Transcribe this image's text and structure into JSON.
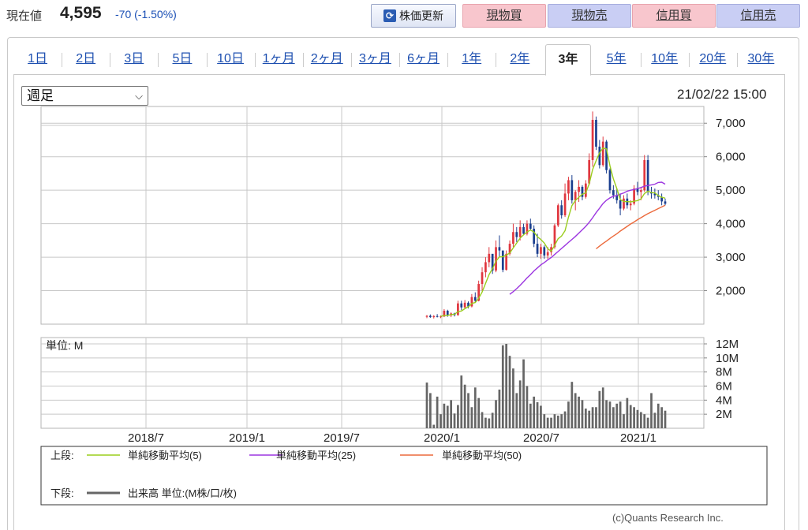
{
  "header": {
    "price_label": "現在値",
    "price": "4,595",
    "change": "-70 (-1.50%)",
    "refresh_label": "株価更新",
    "trade_buttons": [
      "現物買",
      "現物売",
      "信用買",
      "信用売"
    ]
  },
  "tabs": [
    "1日",
    "2日",
    "3日",
    "5日",
    "10日",
    "1ヶ月",
    "2ヶ月",
    "3ヶ月",
    "6ヶ月",
    "1年",
    "2年",
    "3年",
    "5年",
    "10年",
    "20年",
    "30年"
  ],
  "active_tab": "3年",
  "interval": {
    "selected": "週足"
  },
  "timestamp": "21/02/22 15:00",
  "copyright": "(c)Quants Research Inc.",
  "colors": {
    "up": "#e0373f",
    "down": "#1b3f8f",
    "ma5": "#9acd1c",
    "ma25": "#9c36e0",
    "ma50": "#ec6a3c",
    "volume": "#666666",
    "grid": "#c8c8c8"
  },
  "chart_data": [
    {
      "type": "candlestick",
      "period": "weekly",
      "x_ticks": [
        "2018/7",
        "2019/1",
        "2019/7",
        "2020/1",
        "2020/7",
        "2021/1"
      ],
      "y_ticks": [
        "2,000",
        "3,000",
        "4,000",
        "5,000",
        "6,000",
        "7,000"
      ],
      "ylim": [
        1000,
        7500
      ],
      "legend": [
        {
          "section": "上段:",
          "label": "単純移動平均(5)",
          "color": "#9acd1c"
        },
        {
          "section": "",
          "label": "単純移動平均(25)",
          "color": "#9c36e0"
        },
        {
          "section": "",
          "label": "単純移動平均(50)",
          "color": "#ec6a3c"
        }
      ],
      "candles": [
        [
          1220,
          1270,
          1180,
          1250
        ],
        [
          1250,
          1290,
          1190,
          1210
        ],
        [
          1210,
          1270,
          1170,
          1240
        ],
        [
          1240,
          1300,
          1200,
          1220
        ],
        [
          1220,
          1260,
          1180,
          1230
        ],
        [
          1230,
          1450,
          1210,
          1400
        ],
        [
          1400,
          1430,
          1220,
          1260
        ],
        [
          1260,
          1350,
          1210,
          1320
        ],
        [
          1320,
          1340,
          1230,
          1270
        ],
        [
          1270,
          1700,
          1250,
          1620
        ],
        [
          1620,
          1700,
          1420,
          1500
        ],
        [
          1500,
          1720,
          1460,
          1640
        ],
        [
          1640,
          1680,
          1470,
          1530
        ],
        [
          1530,
          1900,
          1500,
          1810
        ],
        [
          1810,
          1950,
          1640,
          1700
        ],
        [
          1700,
          2300,
          1680,
          2200
        ],
        [
          2200,
          2700,
          2000,
          2550
        ],
        [
          2550,
          3000,
          2400,
          2850
        ],
        [
          2850,
          3300,
          2700,
          3100
        ],
        [
          3100,
          3050,
          2500,
          2600
        ],
        [
          2600,
          3500,
          2550,
          3300
        ],
        [
          3300,
          3650,
          3000,
          3200
        ],
        [
          3200,
          3150,
          2550,
          2620
        ],
        [
          2620,
          3200,
          2600,
          3100
        ],
        [
          3100,
          3500,
          3050,
          3400
        ],
        [
          3400,
          4000,
          3300,
          3750
        ],
        [
          3750,
          3900,
          3450,
          3600
        ],
        [
          3600,
          4100,
          3500,
          3900
        ],
        [
          3900,
          4000,
          3650,
          3700
        ],
        [
          3700,
          4100,
          3650,
          4000
        ],
        [
          4000,
          4150,
          3800,
          3850
        ],
        [
          3850,
          3950,
          3300,
          3400
        ],
        [
          3400,
          3700,
          3000,
          3100
        ],
        [
          3100,
          3400,
          2950,
          3300
        ],
        [
          3300,
          3350,
          2950,
          3050
        ],
        [
          3050,
          3300,
          2950,
          3150
        ],
        [
          3150,
          3400,
          3050,
          3300
        ],
        [
          3300,
          4000,
          3250,
          3950
        ],
        [
          3950,
          4600,
          3900,
          4550
        ],
        [
          4550,
          4700,
          4150,
          4250
        ],
        [
          4250,
          5200,
          4200,
          4900
        ],
        [
          4900,
          5400,
          4700,
          5300
        ],
        [
          5300,
          5450,
          4600,
          4700
        ],
        [
          4700,
          5000,
          4400,
          4950
        ],
        [
          4950,
          5300,
          4650,
          5100
        ],
        [
          5100,
          5150,
          4700,
          4800
        ],
        [
          4800,
          5300,
          4750,
          5200
        ],
        [
          5200,
          6100,
          5150,
          5900
        ],
        [
          5900,
          7350,
          5700,
          7100
        ],
        [
          7100,
          7200,
          6200,
          6300
        ],
        [
          6300,
          6500,
          5650,
          5750
        ],
        [
          5750,
          6600,
          5700,
          6450
        ],
        [
          6450,
          6500,
          5500,
          5600
        ],
        [
          5600,
          5650,
          4900,
          5000
        ],
        [
          5000,
          5150,
          4750,
          4850
        ],
        [
          4850,
          5050,
          4600,
          4700
        ],
        [
          4700,
          4900,
          4250,
          4450
        ],
        [
          4450,
          4850,
          4400,
          4750
        ],
        [
          4750,
          4900,
          4450,
          4550
        ],
        [
          4550,
          4700,
          4400,
          4600
        ],
        [
          4600,
          5150,
          4550,
          5050
        ],
        [
          5050,
          5250,
          4850,
          4950
        ],
        [
          4950,
          5100,
          4700,
          5000
        ],
        [
          5000,
          6050,
          4950,
          5900
        ],
        [
          5900,
          6050,
          4850,
          4950
        ],
        [
          4950,
          5100,
          4750,
          4900
        ],
        [
          4900,
          5050,
          4750,
          4850
        ],
        [
          4850,
          5000,
          4700,
          4800
        ],
        [
          4800,
          4900,
          4550,
          4665
        ],
        [
          4665,
          4750,
          4550,
          4595
        ]
      ],
      "ma5": [
        null,
        null,
        null,
        null,
        1230,
        1260,
        1262,
        1286,
        1294,
        1374,
        1394,
        1462,
        1517,
        1620,
        1645,
        1777,
        1958,
        2220,
        2480,
        2660,
        2880,
        3010,
        3014,
        3064,
        3124,
        3274,
        3424,
        3570,
        3670,
        3750,
        3810,
        3750,
        3610,
        3530,
        3420,
        3252,
        3180,
        3350,
        3550,
        3630,
        3790,
        4190,
        4540,
        4690,
        4790,
        4880,
        4920,
        5190,
        5620,
        5882,
        6112,
        6262,
        6232,
        5730,
        5340,
        5050,
        4720,
        4660,
        4660,
        4650,
        4670,
        4690,
        4740,
        4900,
        4970,
        4930,
        4920,
        4840,
        4790,
        4760
      ],
      "ma25": [
        null,
        null,
        null,
        null,
        null,
        null,
        null,
        null,
        null,
        null,
        null,
        null,
        null,
        null,
        null,
        null,
        null,
        null,
        null,
        null,
        null,
        null,
        null,
        null,
        1890,
        1970,
        2060,
        2160,
        2270,
        2380,
        2480,
        2590,
        2680,
        2770,
        2840,
        2920,
        2990,
        3080,
        3170,
        3260,
        3350,
        3440,
        3530,
        3620,
        3720,
        3820,
        3920,
        4040,
        4180,
        4330,
        4460,
        4600,
        4700,
        4770,
        4820,
        4840,
        4880,
        4920,
        4970,
        5000,
        5020,
        5050,
        5080,
        5120,
        5140,
        5160,
        5180,
        5230,
        5240,
        5180
      ],
      "ma50": [
        null,
        null,
        null,
        null,
        null,
        null,
        null,
        null,
        null,
        null,
        null,
        null,
        null,
        null,
        null,
        null,
        null,
        null,
        null,
        null,
        null,
        null,
        null,
        null,
        null,
        null,
        null,
        null,
        null,
        null,
        null,
        null,
        null,
        null,
        null,
        null,
        null,
        null,
        null,
        null,
        null,
        null,
        null,
        null,
        null,
        null,
        null,
        null,
        null,
        3250,
        3330,
        3410,
        3480,
        3560,
        3630,
        3700,
        3780,
        3850,
        3920,
        3990,
        4050,
        4120,
        4180,
        4240,
        4300,
        4350,
        4400,
        4450,
        4500,
        4550
      ]
    },
    {
      "type": "bar",
      "label": "単位: M",
      "y_ticks": [
        "2M",
        "4M",
        "6M",
        "8M",
        "10M",
        "12M"
      ],
      "ylim": [
        0,
        12
      ],
      "legend": [
        {
          "section": "下段:",
          "label": "出来高 単位:(M株/口/枚)",
          "color": "#666666"
        }
      ],
      "values": [
        6.5,
        5.0,
        0.5,
        4.5,
        2.0,
        3.5,
        3.2,
        4.0,
        2.1,
        3.3,
        7.5,
        6.2,
        5.0,
        3.0,
        5.8,
        4.3,
        2.3,
        1.5,
        1.4,
        2.2,
        4.0,
        5.5,
        11.8,
        12.0,
        10.3,
        8.5,
        5.0,
        6.8,
        9.8,
        6.0,
        3.5,
        4.5,
        3.7,
        3.2,
        2.0,
        1.5,
        1.5,
        2.0,
        1.8,
        2.0,
        2.4,
        3.8,
        6.6,
        5.0,
        4.5,
        4.0,
        2.8,
        2.5,
        3.0,
        3.0,
        5.3,
        5.8,
        4.0,
        3.8,
        3.0,
        3.5,
        3.8,
        2.0,
        4.3,
        3.3,
        3.0,
        2.6,
        2.3,
        2.0,
        1.5,
        5.0,
        2.2,
        3.5,
        3.0,
        2.5
      ]
    }
  ]
}
